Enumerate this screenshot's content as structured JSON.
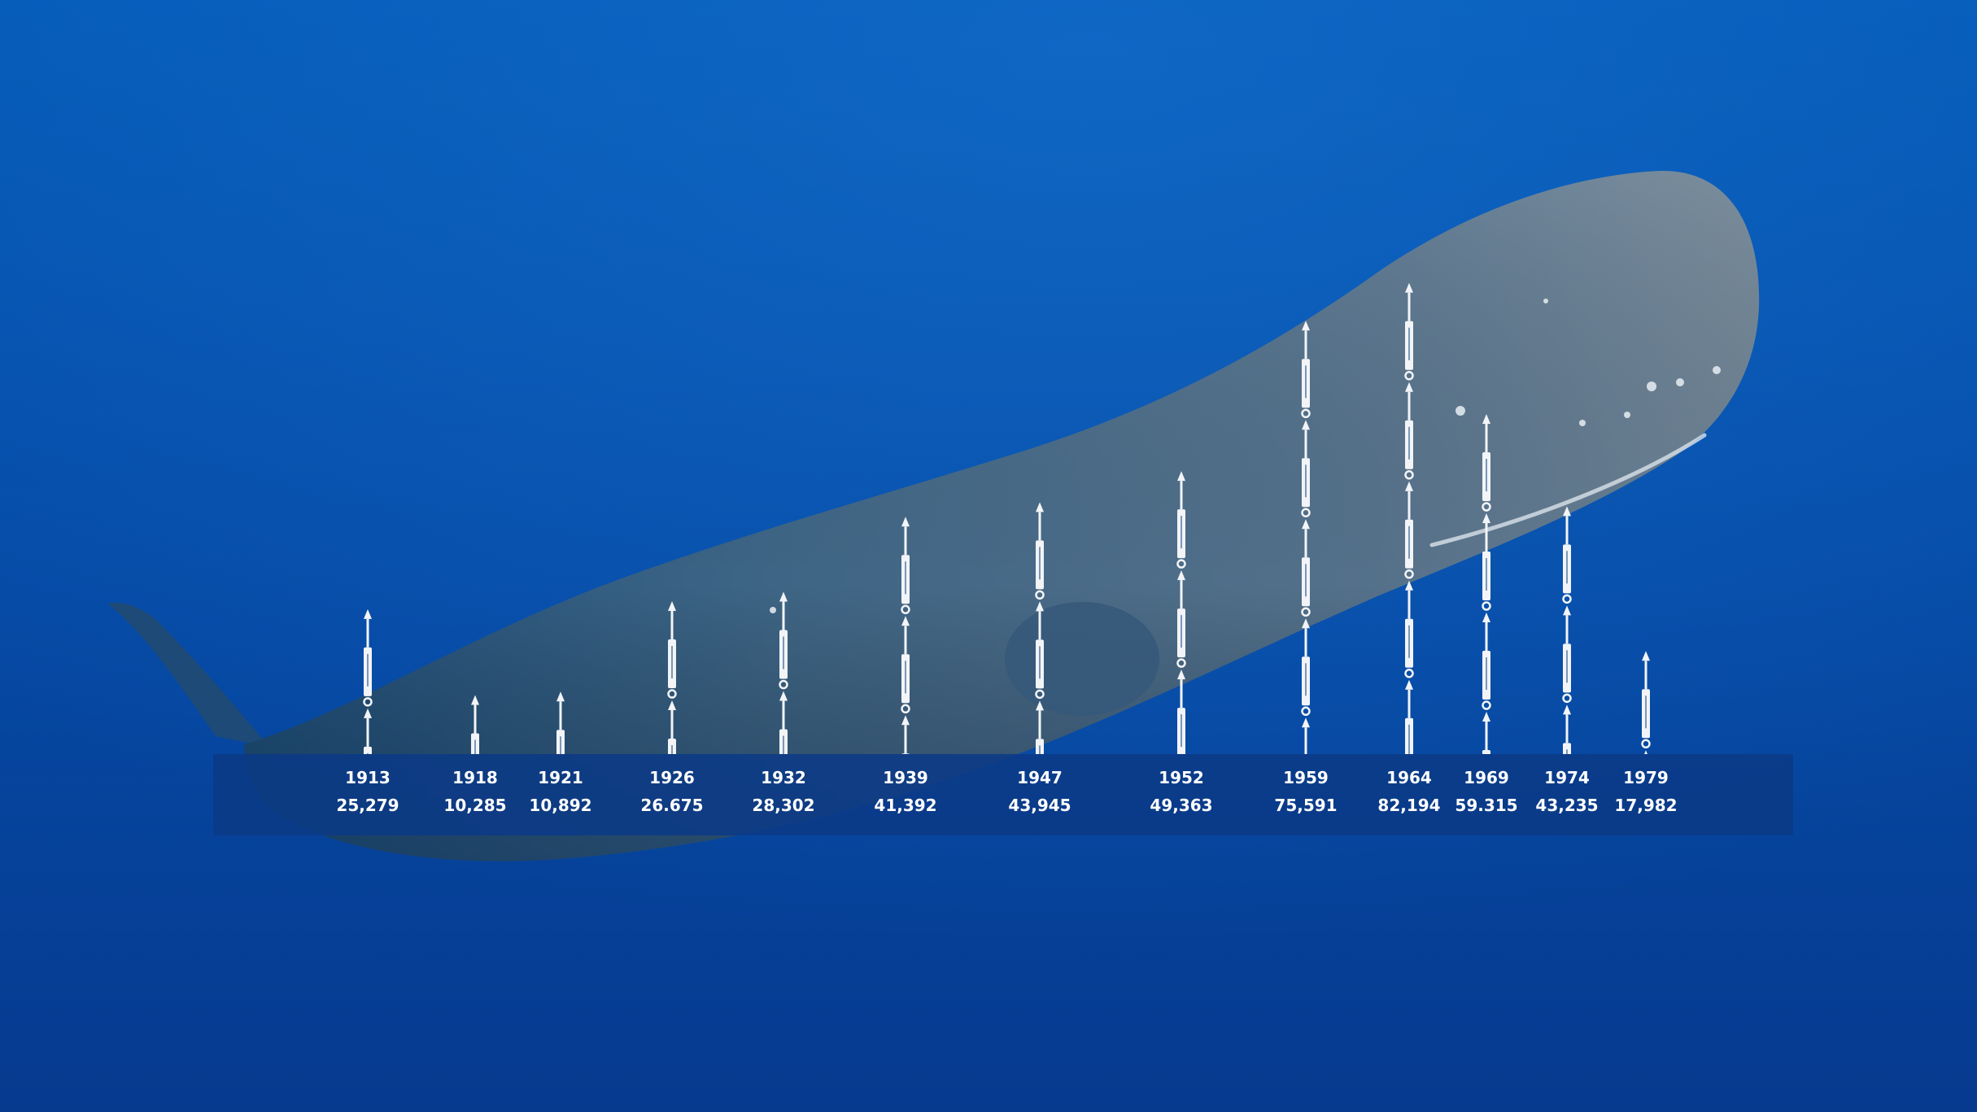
{
  "chart_data": {
    "type": "bar",
    "title": "",
    "xlabel": "",
    "ylabel": "",
    "marker": "harpoon-icon",
    "colors": {
      "background_top": "#0358b6",
      "background_bottom": "#063a8f",
      "band": "#0b3a86",
      "marks": "#f2f4f7",
      "text": "#ffffff",
      "whale": "#4f6d86"
    },
    "categories": [
      "1913",
      "1918",
      "1921",
      "1926",
      "1932",
      "1939",
      "1947",
      "1952",
      "1959",
      "1964",
      "1969",
      "1974",
      "1979"
    ],
    "value_labels": [
      "25,279",
      "10,285",
      "10,892",
      "26.675",
      "28,302",
      "41,392",
      "43,945",
      "49,363",
      "75,591",
      "82,194",
      "59.315",
      "43,235",
      "17,982"
    ],
    "values": [
      25279,
      10285,
      10892,
      26675,
      28302,
      41392,
      43945,
      49363,
      75591,
      82194,
      59315,
      43235,
      17982
    ],
    "ylim": [
      0,
      85000
    ]
  }
}
